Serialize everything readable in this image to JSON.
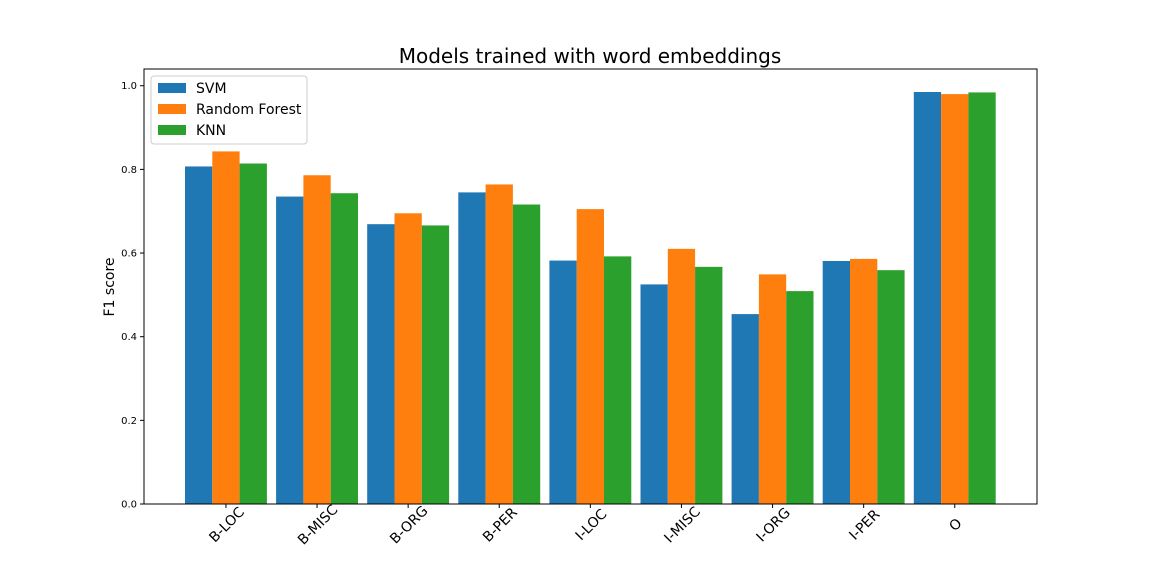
{
  "chart_data": {
    "type": "bar",
    "title": "Models trained with word embeddings",
    "xlabel": "",
    "ylabel": "F1 score",
    "ylim": [
      0,
      1.04
    ],
    "yticks": [
      "0.0",
      "0.2",
      "0.4",
      "0.6",
      "0.8",
      "1.0"
    ],
    "categories": [
      "B-LOC",
      "B-MISC",
      "B-ORG",
      "B-PER",
      "I-LOC",
      "I-MISC",
      "I-ORG",
      "I-PER",
      "O"
    ],
    "series": [
      {
        "name": "SVM",
        "color": "#1f77b4",
        "values": [
          0.807,
          0.735,
          0.669,
          0.745,
          0.582,
          0.525,
          0.454,
          0.581,
          0.985
        ]
      },
      {
        "name": "Random Forest",
        "color": "#ff7f0e",
        "values": [
          0.843,
          0.786,
          0.695,
          0.764,
          0.705,
          0.61,
          0.549,
          0.586,
          0.98
        ]
      },
      {
        "name": "KNN",
        "color": "#2ca02c",
        "values": [
          0.814,
          0.743,
          0.666,
          0.716,
          0.592,
          0.567,
          0.509,
          0.559,
          0.984
        ]
      }
    ],
    "legend_position": "top-left",
    "grid": false
  }
}
